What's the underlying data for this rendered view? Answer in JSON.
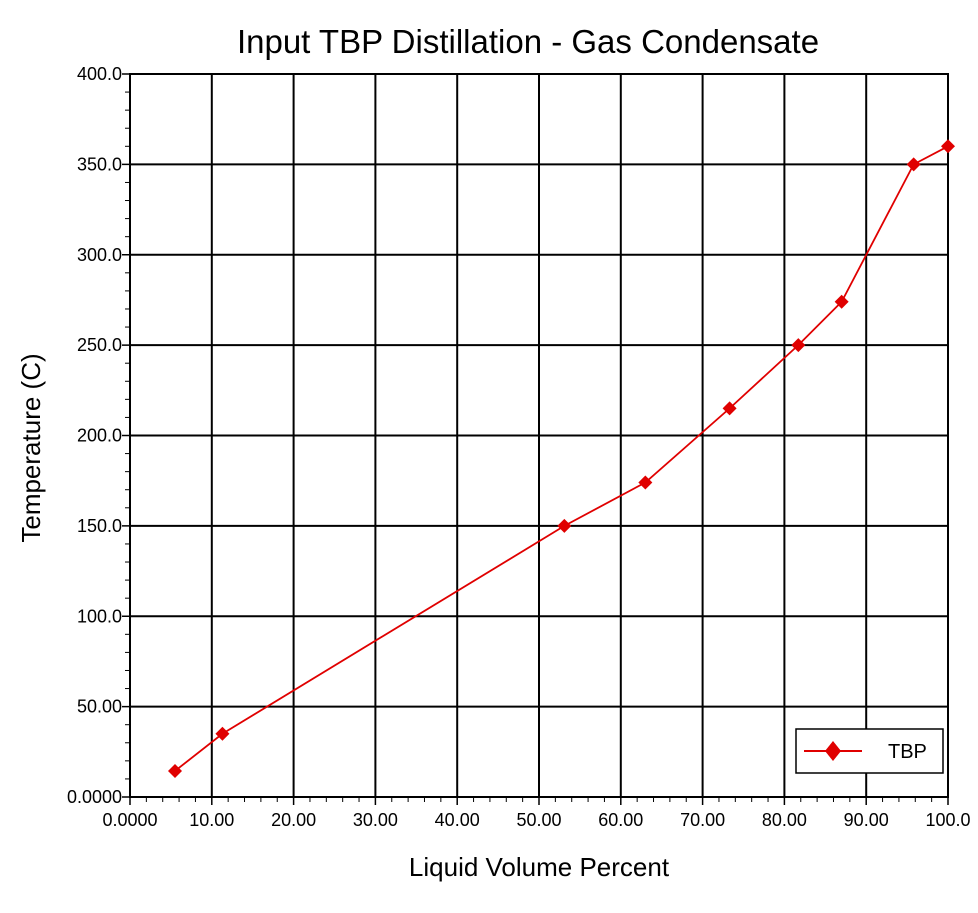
{
  "chart_data": {
    "type": "line",
    "title": "Input TBP Distillation - Gas Condensate",
    "xlabel": "Liquid Volume Percent",
    "ylabel": "Temperature (C)",
    "xlim": [
      0,
      100
    ],
    "ylim": [
      0,
      400
    ],
    "x_ticks": [
      "0.0000",
      "10.00",
      "20.00",
      "30.00",
      "40.00",
      "50.00",
      "60.00",
      "70.00",
      "80.00",
      "90.00",
      "100.0"
    ],
    "y_ticks": [
      "0.0000",
      "50.00",
      "100.0",
      "150.0",
      "200.0",
      "250.0",
      "300.0",
      "350.0",
      "400.0"
    ],
    "grid": true,
    "legend_position": "bottom-right",
    "series": [
      {
        "name": "TBP",
        "color": "#e00000",
        "marker": "diamond",
        "x": [
          5.5,
          11.3,
          53.1,
          63.0,
          73.3,
          81.7,
          87.0,
          95.8,
          100.0
        ],
        "y": [
          14.4,
          35.0,
          150.0,
          174.0,
          215.0,
          250.0,
          274.0,
          350.0,
          360.0
        ]
      }
    ]
  }
}
